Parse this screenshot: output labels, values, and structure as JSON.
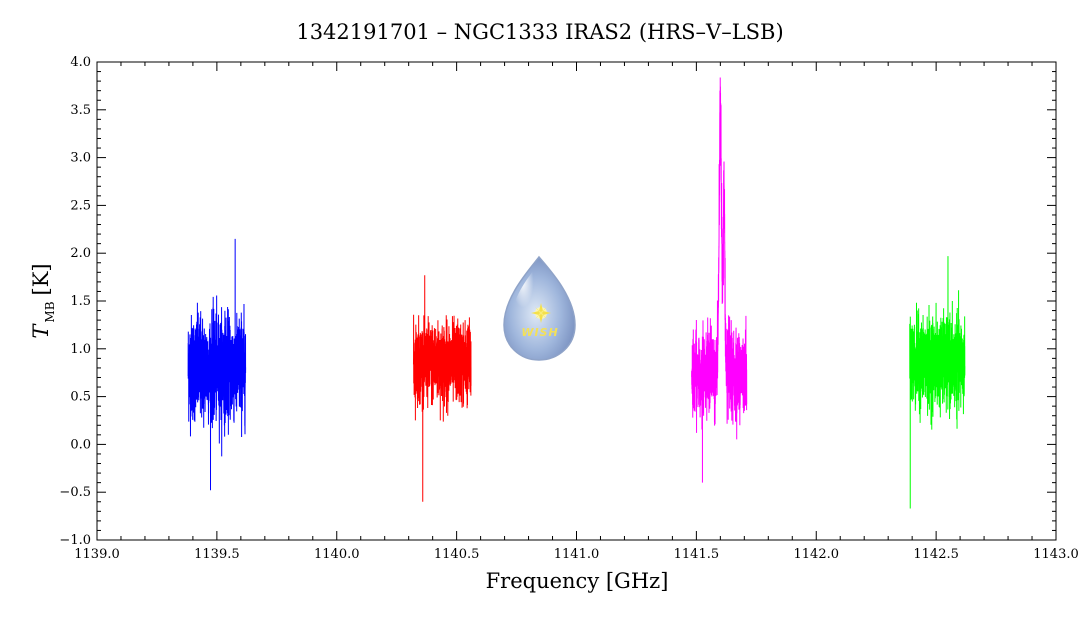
{
  "chart_data": {
    "type": "line",
    "title": "1342191701 – NGC1333 IRAS2 (HRS–V–LSB)",
    "xlabel": "Frequency [GHz]",
    "ylabel": {
      "symbol": "T",
      "subscript": "MB",
      "unit": "[K]"
    },
    "xlim": [
      1139.0,
      1143.0
    ],
    "ylim": [
      -1.0,
      4.0
    ],
    "x_major_ticks": [
      1139.0,
      1139.5,
      1140.0,
      1140.5,
      1141.0,
      1141.5,
      1142.0,
      1142.5,
      1143.0
    ],
    "x_tick_labels": [
      "1139.0",
      "1139.5",
      "1140.0",
      "1140.5",
      "1141.0",
      "1141.5",
      "1142.0",
      "1142.5",
      "1143.0"
    ],
    "y_major_ticks": [
      -1.0,
      -0.5,
      0.0,
      0.5,
      1.0,
      1.5,
      2.0,
      2.5,
      3.0,
      3.5,
      4.0
    ],
    "y_tick_labels": [
      "−1.0",
      "−0.5",
      "0.0",
      "0.5",
      "1.0",
      "1.5",
      "2.0",
      "2.5",
      "3.0",
      "3.5",
      "4.0"
    ],
    "grid": false,
    "legend": false,
    "series": [
      {
        "color": "#0000ff",
        "x_range": [
          1139.38,
          1139.62
        ],
        "baseline": 0.8,
        "noise_amplitude": 0.65,
        "max": 2.15,
        "min": -0.48,
        "lines": []
      },
      {
        "color": "#ff0000",
        "x_range": [
          1140.32,
          1140.56
        ],
        "baseline": 0.85,
        "noise_amplitude": 0.5,
        "max": 1.77,
        "min": -0.6,
        "lines": []
      },
      {
        "color": "#ff00ff",
        "x_range": [
          1141.48,
          1141.71
        ],
        "baseline": 0.75,
        "noise_amplitude": 0.5,
        "max": 3.7,
        "min": -0.4,
        "lines": [
          {
            "x": 1141.6,
            "peak": 3.7,
            "width": 0.007
          },
          {
            "x": 1141.615,
            "peak": 2.8,
            "width": 0.005
          }
        ]
      },
      {
        "color": "#00ff00",
        "x_range": [
          1142.39,
          1142.62
        ],
        "baseline": 0.85,
        "noise_amplitude": 0.55,
        "max": 1.97,
        "min": -0.67,
        "lines": []
      }
    ]
  },
  "logo": {
    "text": "WISH",
    "icon": "water-drop-star-icon"
  }
}
